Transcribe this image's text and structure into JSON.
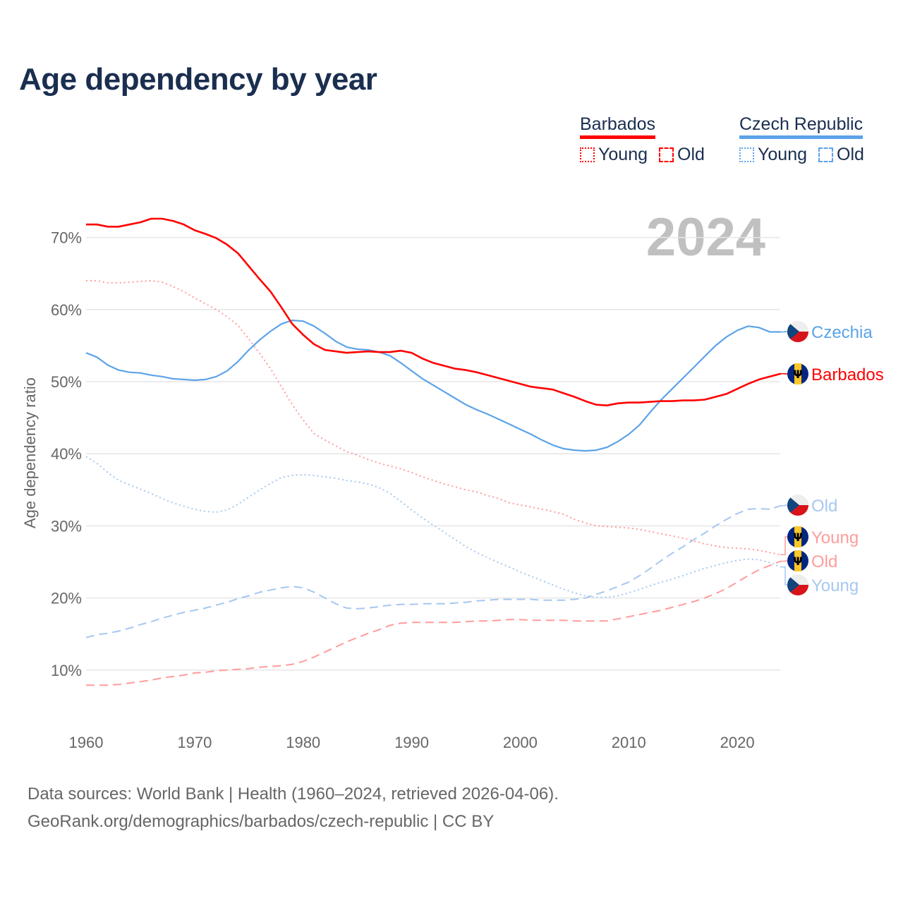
{
  "title": "Age dependency by year",
  "legend": {
    "groups": [
      {
        "name": "Barbados",
        "color": "#ff0000",
        "items": [
          "Young",
          "Old"
        ]
      },
      {
        "name": "Czech Republic",
        "color": "#5ca3e8",
        "items": [
          "Young",
          "Old"
        ]
      }
    ]
  },
  "year_label": "2024",
  "source": {
    "line1": "Data sources: World Bank | Health (1960–2024, retrieved 2026-04-06).",
    "line2": "GeoRank.org/demographics/barbados/czech-republic | CC BY"
  },
  "chart_data": {
    "type": "line",
    "title": "Age dependency by year",
    "xlabel": "",
    "ylabel": "Age dependency ratio",
    "xlim": [
      1960,
      2024
    ],
    "ylim": [
      0,
      75
    ],
    "x_ticks": [
      1960,
      1970,
      1980,
      1990,
      2000,
      2010,
      2020
    ],
    "y_ticks": [
      10,
      20,
      30,
      40,
      50,
      60,
      70
    ],
    "y_tick_labels": [
      "10%",
      "20%",
      "30%",
      "40%",
      "50%",
      "60%",
      "70%"
    ],
    "grid": true,
    "legend_position": "top-right",
    "x_start": 1960,
    "series": [
      {
        "name": "Barbados",
        "end_label": "Barbados",
        "flag": "barbados",
        "color": "#ff0000",
        "style": "solid",
        "width": 2.6,
        "values": [
          71.8,
          71.8,
          71.5,
          71.5,
          71.8,
          72.1,
          72.6,
          72.6,
          72.3,
          71.8,
          71.0,
          70.5,
          69.9,
          69.0,
          67.8,
          66.0,
          64.2,
          62.5,
          60.3,
          58.0,
          56.5,
          55.2,
          54.4,
          54.2,
          54.0,
          54.1,
          54.2,
          54.1,
          54.1,
          54.3,
          54.0,
          53.2,
          52.6,
          52.2,
          51.8,
          51.6,
          51.3,
          50.9,
          50.5,
          50.1,
          49.7,
          49.3,
          49.1,
          48.9,
          48.4,
          47.9,
          47.3,
          46.8,
          46.7,
          47.0,
          47.1,
          47.1,
          47.2,
          47.3,
          47.3,
          47.4,
          47.4,
          47.5,
          47.9,
          48.3,
          49.0,
          49.7,
          50.3,
          50.7,
          51.1
        ]
      },
      {
        "name": "Czechia",
        "end_label": "Czechia",
        "flag": "czechia",
        "color": "#5ca3e8",
        "style": "solid",
        "width": 2.2,
        "values": [
          54.0,
          53.4,
          52.3,
          51.6,
          51.3,
          51.2,
          50.9,
          50.7,
          50.4,
          50.3,
          50.2,
          50.3,
          50.7,
          51.5,
          52.8,
          54.4,
          55.8,
          57.0,
          58.0,
          58.5,
          58.4,
          57.7,
          56.7,
          55.6,
          54.8,
          54.5,
          54.4,
          54.1,
          53.6,
          52.6,
          51.5,
          50.4,
          49.5,
          48.6,
          47.7,
          46.8,
          46.1,
          45.5,
          44.8,
          44.1,
          43.4,
          42.7,
          41.9,
          41.2,
          40.7,
          40.5,
          40.4,
          40.5,
          40.9,
          41.7,
          42.7,
          44.0,
          45.8,
          47.5,
          49.0,
          50.5,
          52.0,
          53.5,
          55.0,
          56.2,
          57.1,
          57.7,
          57.5,
          56.9,
          56.9
        ]
      },
      {
        "name": "Barbados Young",
        "end_label": "Young",
        "flag": "barbados",
        "color": "#ff9c9c",
        "style": "dotted",
        "width": 2,
        "values": [
          64.0,
          64.0,
          63.7,
          63.7,
          63.8,
          63.9,
          64.0,
          63.8,
          63.2,
          62.5,
          61.6,
          60.8,
          60.0,
          59.0,
          57.8,
          55.9,
          53.9,
          51.8,
          49.3,
          46.8,
          44.7,
          42.8,
          41.9,
          41.1,
          40.3,
          39.8,
          39.2,
          38.7,
          38.3,
          37.9,
          37.4,
          36.8,
          36.3,
          35.8,
          35.4,
          35.0,
          34.7,
          34.2,
          33.8,
          33.2,
          32.9,
          32.6,
          32.3,
          32.0,
          31.6,
          30.9,
          30.4,
          30.0,
          29.9,
          29.8,
          29.7,
          29.5,
          29.2,
          28.9,
          28.6,
          28.3,
          27.9,
          27.5,
          27.2,
          27.0,
          26.9,
          26.8,
          26.6,
          26.3,
          26.0
        ]
      },
      {
        "name": "Barbados Old",
        "end_label": "Old",
        "flag": "barbados",
        "color": "#ff9c9c",
        "style": "dashed",
        "width": 2,
        "values": [
          7.9,
          7.9,
          7.9,
          8.0,
          8.2,
          8.4,
          8.6,
          8.9,
          9.1,
          9.3,
          9.6,
          9.7,
          9.9,
          10.0,
          10.1,
          10.2,
          10.4,
          10.5,
          10.6,
          10.8,
          11.2,
          11.8,
          12.5,
          13.2,
          13.9,
          14.5,
          15.1,
          15.6,
          16.2,
          16.5,
          16.6,
          16.6,
          16.6,
          16.6,
          16.6,
          16.7,
          16.8,
          16.8,
          16.9,
          17.0,
          17.0,
          16.9,
          16.9,
          16.9,
          16.9,
          16.8,
          16.8,
          16.8,
          16.8,
          17.1,
          17.4,
          17.7,
          18.0,
          18.3,
          18.7,
          19.1,
          19.5,
          20.0,
          20.6,
          21.3,
          22.2,
          23.1,
          23.9,
          24.5,
          25.1
        ]
      },
      {
        "name": "Czechia Young",
        "end_label": "Young",
        "flag": "czechia",
        "color": "#a6c8f0",
        "style": "dotted",
        "width": 2,
        "values": [
          39.6,
          38.7,
          37.4,
          36.3,
          35.7,
          35.1,
          34.5,
          33.8,
          33.2,
          32.7,
          32.3,
          32.0,
          31.9,
          32.2,
          33.0,
          34.0,
          35.0,
          35.9,
          36.7,
          37.0,
          37.1,
          37.0,
          36.8,
          36.6,
          36.3,
          36.1,
          35.8,
          35.3,
          34.5,
          33.4,
          32.2,
          31.1,
          30.1,
          29.1,
          28.1,
          27.1,
          26.3,
          25.6,
          24.9,
          24.3,
          23.6,
          23.0,
          22.4,
          21.8,
          21.2,
          20.7,
          20.3,
          20.1,
          20.1,
          20.3,
          20.7,
          21.2,
          21.7,
          22.2,
          22.6,
          23.1,
          23.6,
          24.1,
          24.5,
          24.9,
          25.2,
          25.4,
          25.3,
          24.9,
          24.3
        ]
      },
      {
        "name": "Czechia Old",
        "end_label": "Old",
        "flag": "czechia",
        "color": "#a6c8f0",
        "style": "dashed",
        "width": 2,
        "values": [
          14.5,
          14.9,
          15.1,
          15.4,
          15.8,
          16.3,
          16.7,
          17.2,
          17.6,
          18.0,
          18.3,
          18.6,
          19.0,
          19.4,
          19.9,
          20.3,
          20.8,
          21.1,
          21.4,
          21.6,
          21.4,
          20.8,
          20.0,
          19.2,
          18.6,
          18.5,
          18.6,
          18.8,
          19.0,
          19.1,
          19.1,
          19.2,
          19.2,
          19.2,
          19.3,
          19.4,
          19.6,
          19.7,
          19.8,
          19.8,
          19.8,
          19.8,
          19.7,
          19.7,
          19.7,
          19.8,
          20.0,
          20.5,
          21.0,
          21.6,
          22.2,
          23.1,
          24.1,
          25.2,
          26.2,
          27.1,
          28.1,
          29.0,
          30.0,
          30.9,
          31.7,
          32.3,
          32.4,
          32.3,
          32.8
        ]
      }
    ]
  }
}
